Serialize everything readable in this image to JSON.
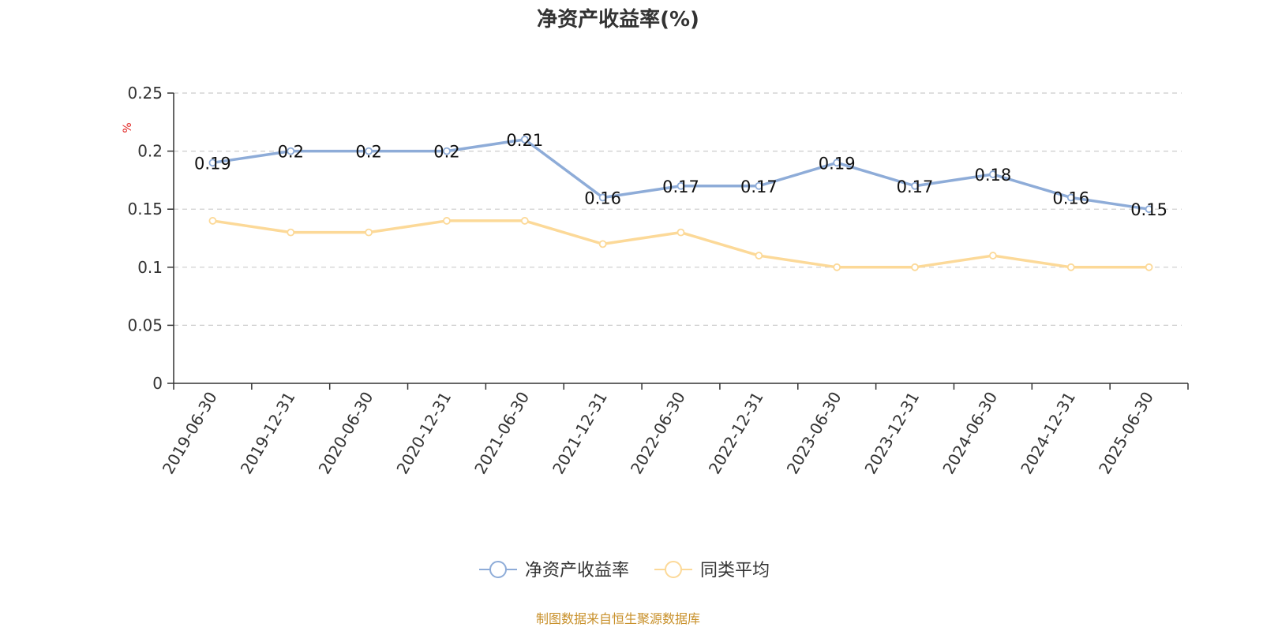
{
  "chart_data": {
    "type": "line",
    "title": "净资产收益率(%)",
    "ylabel": "%",
    "ylim": [
      0,
      0.25
    ],
    "yticks": [
      "0",
      "0.05",
      "0.1",
      "0.15",
      "0.2",
      "0.25"
    ],
    "categories": [
      "2019-06-30",
      "2019-12-31",
      "2020-06-30",
      "2020-12-31",
      "2021-06-30",
      "2021-12-31",
      "2022-06-30",
      "2022-12-31",
      "2023-06-30",
      "2023-12-31",
      "2024-06-30",
      "2024-12-31",
      "2025-06-30"
    ],
    "series": [
      {
        "name": "净资产收益率",
        "color": "#8eacd8",
        "values": [
          0.19,
          0.2,
          0.2,
          0.2,
          0.21,
          0.16,
          0.17,
          0.17,
          0.19,
          0.17,
          0.18,
          0.16,
          0.15
        ],
        "labels": [
          "0.19",
          "0.2",
          "0.2",
          "0.2",
          "0.21",
          "0.16",
          "0.17",
          "0.17",
          "0.19",
          "0.17",
          "0.18",
          "0.16",
          "0.15"
        ],
        "show_labels": true
      },
      {
        "name": "同类平均",
        "color": "#fcd998",
        "values": [
          0.14,
          0.13,
          0.13,
          0.14,
          0.14,
          0.12,
          0.13,
          0.11,
          0.1,
          0.1,
          0.11,
          0.1,
          0.1
        ],
        "show_labels": false
      }
    ],
    "grid": true,
    "legend_position": "bottom-center"
  },
  "source_note": "制图数据来自恒生聚源数据库"
}
